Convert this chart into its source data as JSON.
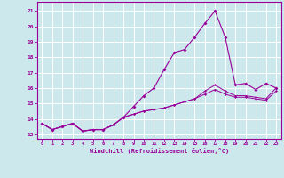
{
  "xlabel": "Windchill (Refroidissement éolien,°C)",
  "background_color": "#cce8ec",
  "grid_color": "#ffffff",
  "line_color": "#990099",
  "xlim": [
    -0.5,
    23.5
  ],
  "ylim": [
    12.7,
    21.6
  ],
  "xticks": [
    0,
    1,
    2,
    3,
    4,
    5,
    6,
    7,
    8,
    9,
    10,
    11,
    12,
    13,
    14,
    15,
    16,
    17,
    18,
    19,
    20,
    21,
    22,
    23
  ],
  "yticks": [
    13,
    14,
    15,
    16,
    17,
    18,
    19,
    20,
    21
  ],
  "hours": [
    0,
    1,
    2,
    3,
    4,
    5,
    6,
    7,
    8,
    9,
    10,
    11,
    12,
    13,
    14,
    15,
    16,
    17,
    18,
    19,
    20,
    21,
    22,
    23
  ],
  "line1": [
    13.7,
    13.3,
    13.5,
    13.7,
    13.2,
    13.3,
    13.3,
    13.6,
    14.1,
    14.8,
    15.5,
    16.0,
    17.2,
    18.3,
    18.5,
    19.3,
    20.2,
    21.0,
    19.3,
    16.2,
    16.3,
    15.9,
    16.3,
    16.0
  ],
  "line2": [
    13.7,
    13.3,
    13.5,
    13.7,
    13.2,
    13.3,
    13.3,
    13.6,
    14.1,
    14.3,
    14.5,
    14.6,
    14.7,
    14.9,
    15.1,
    15.3,
    15.6,
    15.9,
    15.6,
    15.4,
    15.4,
    15.3,
    15.2,
    15.8
  ],
  "line3": [
    13.7,
    13.3,
    13.5,
    13.7,
    13.2,
    13.3,
    13.3,
    13.6,
    14.1,
    14.3,
    14.5,
    14.6,
    14.7,
    14.9,
    15.1,
    15.3,
    15.8,
    16.2,
    15.8,
    15.5,
    15.5,
    15.4,
    15.3,
    16.0
  ]
}
